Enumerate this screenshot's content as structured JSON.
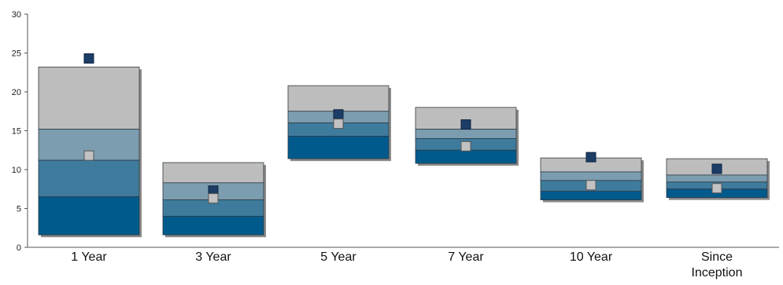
{
  "chart_data": {
    "type": "floating-bar",
    "ylim": [
      0,
      30
    ],
    "yticks": [
      0,
      5,
      10,
      15,
      20,
      25,
      30
    ],
    "categories": [
      [
        "1 Year"
      ],
      [
        "3 Year"
      ],
      [
        "5 Year"
      ],
      [
        "7 Year"
      ],
      [
        "10 Year"
      ],
      [
        "Since",
        "Inception"
      ]
    ],
    "bands": [
      {
        "min": 1.6,
        "q1": 6.5,
        "median": 11.2,
        "q3": 15.2,
        "max": 23.2
      },
      {
        "min": 1.6,
        "q1": 4.0,
        "median": 6.1,
        "q3": 8.3,
        "max": 10.9
      },
      {
        "min": 11.4,
        "q1": 14.3,
        "median": 16.0,
        "q3": 17.5,
        "max": 20.8
      },
      {
        "min": 10.8,
        "q1": 12.5,
        "median": 14.0,
        "q3": 15.2,
        "max": 18.0
      },
      {
        "min": 6.1,
        "q1": 7.2,
        "median": 8.6,
        "q3": 9.7,
        "max": 11.5
      },
      {
        "min": 6.4,
        "q1": 7.5,
        "median": 8.4,
        "q3": 9.3,
        "max": 11.4
      }
    ],
    "markers": {
      "dark": [
        24.3,
        7.3,
        17.1,
        15.8,
        11.6,
        10.1
      ],
      "light": [
        11.8,
        6.3,
        15.9,
        13.0,
        8.0,
        7.6
      ]
    },
    "colors": {
      "top_band": "#bdbdbd",
      "upper_mid_band": "#7c9daf",
      "lower_mid_band": "#3e7b9c",
      "bottom_band": "#005a8c",
      "dark_marker": "#1c3d66",
      "light_marker": "#c2c2c2",
      "axis": "#555555"
    }
  }
}
